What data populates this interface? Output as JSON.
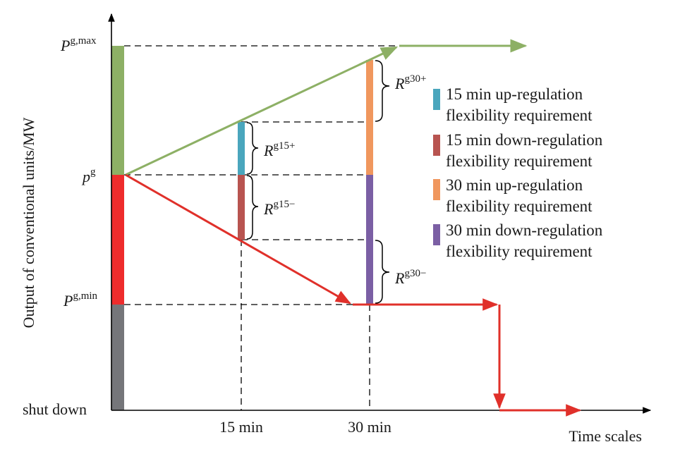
{
  "axes": {
    "y_label": "Output of conventional units/MW",
    "x_label": "Time scales",
    "x_ticks": [
      "15 min",
      "30 min"
    ]
  },
  "y_levels": {
    "pmax": {
      "main": "P",
      "sup": "g,max"
    },
    "pg": {
      "main": "p",
      "sup": "g"
    },
    "pmin": {
      "main": "P",
      "sup": "g,min"
    },
    "shutdown": "shut down"
  },
  "reserves": {
    "r15_up": {
      "main": "R",
      "sup": "g15+"
    },
    "r15_down": {
      "main": "R",
      "sup": "g15−"
    },
    "r30_up": {
      "main": "R",
      "sup": "g30+"
    },
    "r30_down": {
      "main": "R",
      "sup": "g30−"
    }
  },
  "legend": [
    {
      "line1": "15 min up-regulation",
      "line2": "flexibility requirement",
      "color": "#4aa6bd"
    },
    {
      "line1": "15 min down-regulation",
      "line2": "flexibility requirement",
      "color": "#b85450"
    },
    {
      "line1": "30 min up-regulation",
      "line2": "flexibility requirement",
      "color": "#f0975e"
    },
    {
      "line1": "30 min down-regulation",
      "line2": "flexibility requirement",
      "color": "#7b5fa4"
    }
  ],
  "colors": {
    "green_band": "#8db065",
    "red_band": "#ee2c2c",
    "gray_band": "#75767a",
    "up_path": "#8db065",
    "down_path": "#e0302a"
  }
}
